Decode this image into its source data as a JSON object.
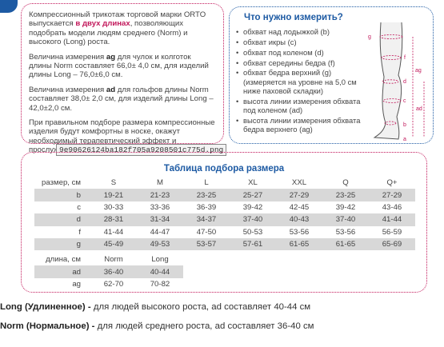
{
  "intro": {
    "p1_a": "Компрессионный трикотаж торговой марки ORTO выпускается ",
    "p1_b": "в двух длинах",
    "p1_c": ", позволяющих подобрать модели людям среднего (Norm) и высокого (Long) роста.",
    "p2_a": "Величина измерения ",
    "p2_b": "ag",
    "p2_c": " для чулок и колготок длины Norm составляет 66,0± 4,0 см, для изделий длины Long – 76,0±6,0 см.",
    "p3_a": "Величина измерения ",
    "p3_b": "ad",
    "p3_c": " для гольфов длины Norm составляет 38,0± 2,0 см, для изделий длины Long – 42,0±2,0 см.",
    "p4": "При правильном подборе размера компрессионные изделия будут комфортны в носке, окажут необходимый терапевтический эффект и прослужат долго."
  },
  "measure": {
    "title": "Что нужно измерить?",
    "items": [
      "обхват над лодыжкой (b)",
      "обхват икры (c)",
      "обхват под коленом (d)",
      "обхват середины бедра (f)",
      "обхват бедра верхний (g) (измеряется на уровне на 5,0 см ниже паховой складки)",
      "высота линии измерения обхвата под коленом (ad)",
      "высота линии измерения обхвата бедра верхнего (ag)"
    ],
    "leg_labels": [
      "g",
      "f",
      "ag",
      "d",
      "ad",
      "c",
      "b",
      "a"
    ]
  },
  "filename": "9e90626124ba182f705a9208501c775d.png",
  "table": {
    "title": "Таблица подбора размера",
    "header": [
      "размер, см",
      "S",
      "M",
      "L",
      "XL",
      "XXL",
      "Q",
      "Q+"
    ],
    "rows": [
      [
        "b",
        "19-21",
        "21-23",
        "23-25",
        "25-27",
        "27-29",
        "23-25",
        "27-29"
      ],
      [
        "c",
        "30-33",
        "33-36",
        "36-39",
        "39-42",
        "42-45",
        "39-42",
        "43-46"
      ],
      [
        "d",
        "28-31",
        "31-34",
        "34-37",
        "37-40",
        "40-43",
        "37-40",
        "41-44"
      ],
      [
        "f",
        "41-44",
        "44-47",
        "47-50",
        "50-53",
        "53-56",
        "53-56",
        "56-59"
      ],
      [
        "g",
        "45-49",
        "49-53",
        "53-57",
        "57-61",
        "61-65",
        "61-65",
        "65-69"
      ]
    ],
    "length_header": [
      "длина, см",
      "Norm",
      "Long"
    ],
    "length_rows": [
      [
        "ad",
        "36-40",
        "40-44"
      ],
      [
        "ag",
        "62-70",
        "70-82"
      ]
    ]
  },
  "notes": {
    "long_label": "Long (Удлиненное) -",
    "long_text": " для людей высокого роста,  ad составляет 40-44 см",
    "norm_label": "Norm (Нормальное) -",
    "norm_text": " для людей среднего роста,  ad составляет 36-40 см"
  }
}
